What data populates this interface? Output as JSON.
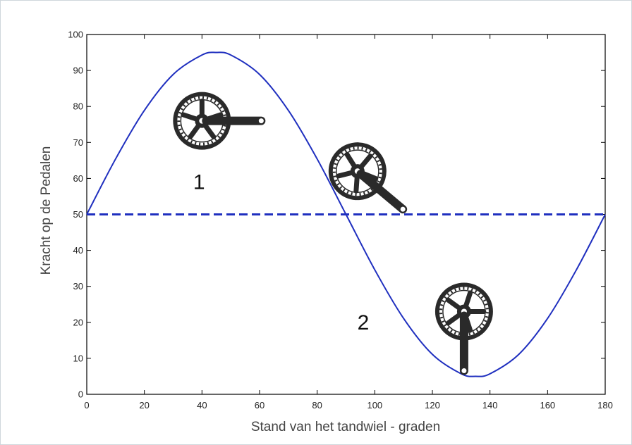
{
  "chart_data": {
    "type": "line",
    "xlabel": "Stand van het tandwiel - graden",
    "ylabel": "Kracht op de Pedalen",
    "xlim": [
      0,
      180
    ],
    "ylim": [
      0,
      100
    ],
    "xticks": [
      0,
      20,
      40,
      60,
      80,
      100,
      120,
      140,
      160,
      180
    ],
    "yticks": [
      0,
      10,
      20,
      30,
      40,
      50,
      60,
      70,
      80,
      90,
      100
    ],
    "grid": false,
    "series": [
      {
        "style": "solid",
        "color": "#1f2fbf",
        "x": [
          0,
          10,
          20,
          30,
          40,
          45,
          50,
          60,
          70,
          80,
          90,
          100,
          110,
          120,
          130,
          135,
          140,
          150,
          160,
          170,
          180
        ],
        "y": [
          50,
          65.4,
          78.9,
          88.9,
          94.3,
          95,
          94.3,
          88.9,
          78.9,
          65.4,
          50,
          34.6,
          21.1,
          11.1,
          5.7,
          5,
          5.7,
          11.1,
          21.1,
          34.6,
          50
        ]
      },
      {
        "style": "dashed",
        "color": "#1f2fbf",
        "x": [
          0,
          180
        ],
        "y": [
          50,
          50
        ]
      }
    ],
    "annotations": [
      {
        "text": "1",
        "x": 39,
        "y": 57
      },
      {
        "text": "2",
        "x": 96,
        "y": 18
      }
    ],
    "icons": [
      {
        "name": "crankset-icon",
        "x": 40,
        "y": 76,
        "angle": 0
      },
      {
        "name": "crankset-icon",
        "x": 94,
        "y": 62,
        "angle": 40
      },
      {
        "name": "crankset-icon",
        "x": 131,
        "y": 23,
        "angle": 90
      }
    ]
  },
  "colors": {
    "line": "#1f2fbf",
    "axes": "#000000",
    "crank": "#2a2a2a",
    "frame": "#cfd6dc"
  }
}
